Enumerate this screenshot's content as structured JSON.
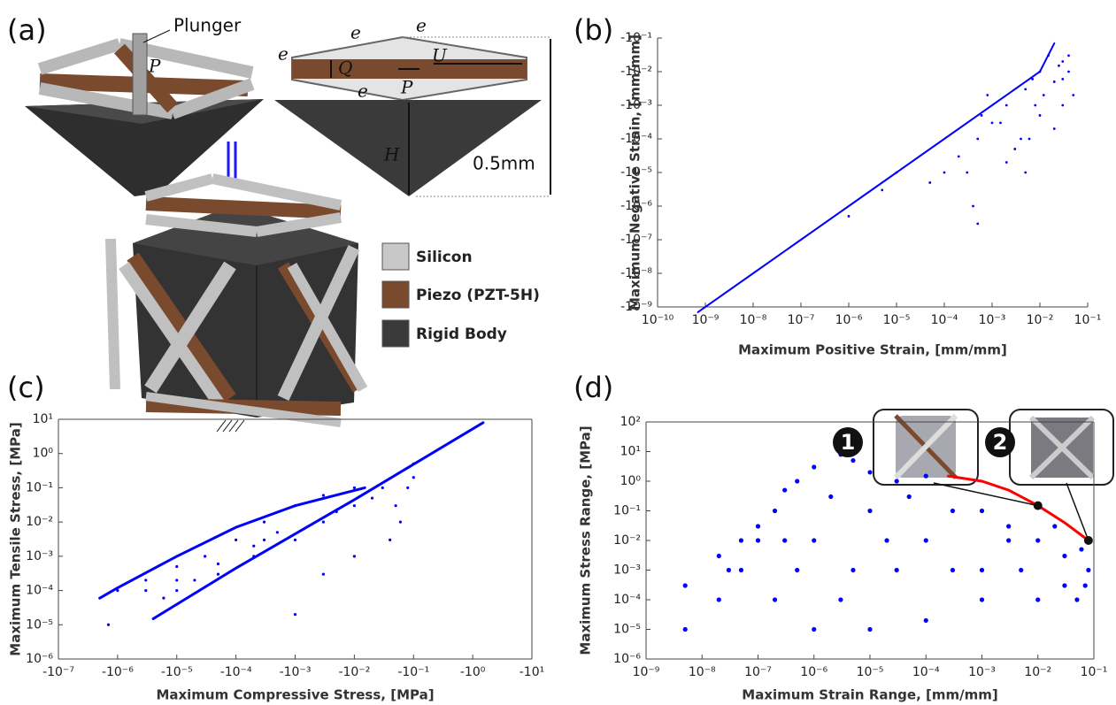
{
  "panels": [
    "(a)",
    "(b)",
    "(c)",
    "(d)"
  ],
  "diagram": {
    "labels": [
      "Plunger",
      "P",
      "e",
      "e",
      "e",
      "Q",
      "U",
      "e",
      "P",
      "H",
      "0.5mm"
    ]
  },
  "legend": {
    "items": [
      "Silicon",
      "Piezo (PZT-5H)",
      "Rigid Body"
    ]
  },
  "chart_data": [
    {
      "type": "scatter",
      "x_label": "Maximum Positive Strain, [mm/mm]",
      "y_label": "Maximum Negative Strain, [mm/mm]",
      "log_x": true,
      "log_y": true,
      "xlim": [
        1e-10,
        0.1
      ],
      "ylim": [
        -1e-09,
        -0.1
      ],
      "xticks": [
        {
          "value": 1e-10,
          "label": "10⁻¹⁰"
        },
        {
          "value": 1e-09,
          "label": "10⁻⁹"
        },
        {
          "value": 1e-08,
          "label": "10⁻⁸"
        },
        {
          "value": 1e-07,
          "label": "10⁻⁷"
        },
        {
          "value": 1e-06,
          "label": "10⁻⁶"
        },
        {
          "value": 1e-05,
          "label": "10⁻⁵"
        },
        {
          "value": 0.0001,
          "label": "10⁻⁴"
        },
        {
          "value": 0.001,
          "label": "10⁻³"
        },
        {
          "value": 0.01,
          "label": "10⁻²"
        },
        {
          "value": 0.1,
          "label": "10⁻¹"
        }
      ],
      "yticks": [
        {
          "value": -1e-09,
          "label": "-10⁻⁹"
        },
        {
          "value": -1e-08,
          "label": "-10⁻⁸"
        },
        {
          "value": -1e-07,
          "label": "-10⁻⁷"
        },
        {
          "value": -1e-06,
          "label": "-10⁻⁶"
        },
        {
          "value": -1e-05,
          "label": "-10⁻⁵"
        },
        {
          "value": -0.0001,
          "label": "-10⁻⁴"
        },
        {
          "value": -0.001,
          "label": "-10⁻³"
        },
        {
          "value": -0.01,
          "label": "-10⁻²"
        },
        {
          "value": -0.1,
          "label": "-10⁻¹"
        }
      ],
      "series": [
        {
          "type": "line",
          "color": "#0000ff",
          "x": [
            7e-10,
            1e-08,
            1e-07,
            1e-06,
            1e-05,
            0.0001,
            0.001,
            0.01,
            0.02
          ],
          "values": [
            -7e-10,
            -1e-08,
            -1e-07,
            -1e-06,
            -1e-05,
            -0.0001,
            -0.001,
            -0.01,
            -0.07
          ]
        },
        {
          "type": "scatter",
          "color": "#0000ff",
          "x": [
            0.0005,
            0.001,
            0.002,
            0.005,
            0.01,
            0.02,
            0.03,
            0.04,
            0.05,
            0.003,
            0.0001,
            5e-05,
            0.0005,
            0.0003,
            1e-05,
            0.002,
            0.005,
            0.01,
            0.02,
            0.03,
            0.006,
            0.0008,
            0.015,
            0.007,
            0.0004,
            0.0002,
            5e-06,
            1e-06,
            0.04,
            0.03,
            0.012,
            0.008,
            0.025,
            0.0006,
            0.0015,
            0.004
          ],
          "values": [
            -0.0001,
            -0.0003,
            -0.001,
            -0.003,
            -0.01,
            -0.005,
            -0.02,
            -0.01,
            -0.002,
            -5e-05,
            -1e-05,
            -5e-06,
            -3e-07,
            -1e-05,
            -1e-05,
            -2e-05,
            -1e-05,
            -0.0005,
            -0.0002,
            -0.001,
            -0.0001,
            -0.002,
            -0.03,
            -0.006,
            -1e-06,
            -3e-05,
            -3e-06,
            -5e-07,
            -0.03,
            -0.006,
            -0.002,
            -0.001,
            -0.015,
            -0.0005,
            -0.0003,
            -0.0001
          ]
        }
      ]
    },
    {
      "type": "scatter",
      "x_label": "Maximum Compressive Stress, [MPa]",
      "y_label": "Maximum Tensile Stress, [MPa]",
      "log_x": true,
      "log_y": true,
      "xlim": [
        -1e-07,
        -10.0
      ],
      "ylim": [
        1e-06,
        10.0
      ],
      "xticks": [
        {
          "value": -1e-07,
          "label": "-10⁻⁷"
        },
        {
          "value": -1e-06,
          "label": "-10⁻⁶"
        },
        {
          "value": -1e-05,
          "label": "-10⁻⁵"
        },
        {
          "value": -0.0001,
          "label": "-10⁻⁴"
        },
        {
          "value": -0.001,
          "label": "-10⁻³"
        },
        {
          "value": -0.01,
          "label": "-10⁻²"
        },
        {
          "value": -0.1,
          "label": "-10⁻¹"
        },
        {
          "value": -1,
          "label": "-10⁰"
        },
        {
          "value": -10,
          "label": "-10¹"
        }
      ],
      "yticks": [
        {
          "value": 1e-06,
          "label": "10⁻⁶"
        },
        {
          "value": 1e-05,
          "label": "10⁻⁵"
        },
        {
          "value": 0.0001,
          "label": "10⁻⁴"
        },
        {
          "value": 0.001,
          "label": "10⁻³"
        },
        {
          "value": 0.01,
          "label": "10⁻²"
        },
        {
          "value": 0.1,
          "label": "10⁻¹"
        },
        {
          "value": 1,
          "label": "10⁰"
        },
        {
          "value": 10,
          "label": "10¹"
        }
      ],
      "series": [
        {
          "type": "line",
          "color": "#0000ff",
          "x": [
            -4e-06,
            -0.0001,
            -0.01,
            -1.5
          ],
          "values": [
            1.5e-05,
            0.00045,
            0.045,
            8
          ]
        },
        {
          "type": "line",
          "color": "#0000ff",
          "x": [
            -5e-07,
            -1e-06,
            -1e-05,
            -0.0001,
            -0.001,
            -0.015
          ],
          "values": [
            6e-05,
            0.00012,
            0.001,
            0.007,
            0.03,
            0.1
          ]
        },
        {
          "type": "scatter",
          "color": "#0000ff",
          "x": [
            -1e-06,
            -3e-06,
            -1e-05,
            -3e-05,
            -0.0001,
            -0.0003,
            -0.001,
            -0.003,
            -0.01,
            -1e-05,
            -5e-05,
            -0.0002,
            -0.001,
            -0.003,
            -0.01,
            -0.03,
            -0.05,
            -0.08,
            -0.1,
            -0.04,
            -0.01,
            -0.003,
            -0.001,
            -7e-07,
            -6e-06,
            -2e-05,
            -5e-05,
            -0.0002,
            -0.0005,
            -0.005,
            -0.02,
            -0.06,
            -0.1,
            -3e-06,
            -1e-05,
            -0.0003
          ],
          "values": [
            0.0001,
            0.0002,
            0.0005,
            0.001,
            0.003,
            0.01,
            0.03,
            0.06,
            0.1,
            0.0001,
            0.0003,
            0.001,
            0.003,
            0.01,
            0.03,
            0.1,
            0.03,
            0.1,
            0.5,
            0.003,
            0.001,
            0.0003,
            2e-05,
            1e-05,
            6e-05,
            0.0002,
            0.0006,
            0.002,
            0.005,
            0.02,
            0.05,
            0.01,
            0.2,
            0.0001,
            0.0002,
            0.003
          ]
        }
      ]
    },
    {
      "type": "scatter",
      "x_label": "Maximum Strain Range, [mm/mm]",
      "y_label": "Maximum Stress Range, [MPa]",
      "log_x": true,
      "log_y": true,
      "xlim": [
        1e-09,
        0.1
      ],
      "ylim": [
        1e-06,
        100.0
      ],
      "xticks": [
        {
          "value": 1e-09,
          "label": "10⁻⁹"
        },
        {
          "value": 1e-08,
          "label": "10⁻⁸"
        },
        {
          "value": 1e-07,
          "label": "10⁻⁷"
        },
        {
          "value": 1e-06,
          "label": "10⁻⁶"
        },
        {
          "value": 1e-05,
          "label": "10⁻⁵"
        },
        {
          "value": 0.0001,
          "label": "10⁻⁴"
        },
        {
          "value": 0.001,
          "label": "10⁻³"
        },
        {
          "value": 0.01,
          "label": "10⁻²"
        },
        {
          "value": 0.1,
          "label": "10⁻¹"
        }
      ],
      "yticks": [
        {
          "value": 1e-06,
          "label": "10⁻⁶"
        },
        {
          "value": 1e-05,
          "label": "10⁻⁵"
        },
        {
          "value": 0.0001,
          "label": "10⁻⁴"
        },
        {
          "value": 0.001,
          "label": "10⁻³"
        },
        {
          "value": 0.01,
          "label": "10⁻²"
        },
        {
          "value": 0.1,
          "label": "10⁻¹"
        },
        {
          "value": 1,
          "label": "10⁰"
        },
        {
          "value": 10,
          "label": "10¹"
        },
        {
          "value": 100,
          "label": "10²"
        }
      ],
      "series": [
        {
          "type": "scatter",
          "color": "#0000ff",
          "x": [
            5e-09,
            5e-09,
            2e-08,
            5e-08,
            1e-07,
            2e-07,
            3e-07,
            5e-07,
            1e-06,
            3e-06,
            5e-06,
            1e-05,
            3e-05,
            0.0001,
            1e-06,
            1e-05,
            0.0001,
            0.001,
            0.01,
            0.05,
            0.08,
            2e-07,
            3e-08,
            5e-07,
            1e-06,
            1e-05,
            0.0001,
            0.001,
            0.01,
            0.001,
            0.03,
            2e-08,
            5e-08,
            1e-07,
            3e-07,
            2e-06,
            5e-06,
            2e-05,
            5e-05,
            0.0003,
            0.003,
            0.005,
            0.02,
            0.06,
            3e-06,
            3e-05,
            0.0003,
            0.003,
            0.03,
            0.07
          ],
          "values": [
            1e-05,
            0.0003,
            0.003,
            0.01,
            0.03,
            0.1,
            0.5,
            1,
            3,
            8,
            5,
            2,
            1,
            1.5,
            1e-05,
            1e-05,
            2e-05,
            0.0001,
            0.0001,
            0.0001,
            0.001,
            0.0001,
            0.001,
            0.001,
            0.01,
            0.1,
            0.01,
            0.1,
            0.01,
            0.001,
            0.003,
            0.0001,
            0.001,
            0.01,
            0.01,
            0.3,
            0.001,
            0.01,
            0.3,
            0.1,
            0.03,
            0.001,
            0.03,
            0.005,
            0.0001,
            0.001,
            0.001,
            0.01,
            0.0003,
            0.0003
          ]
        },
        {
          "type": "line",
          "color": "#ff0000",
          "x": [
            0.00025,
            0.001,
            0.003,
            0.01,
            0.03,
            0.08
          ],
          "values": [
            1.5,
            1,
            0.5,
            0.15,
            0.04,
            0.01
          ]
        }
      ],
      "annotations": [
        {
          "text": "1",
          "x": 0.01,
          "y": 0.15
        },
        {
          "text": "2",
          "x": 0.08,
          "y": 0.01
        }
      ]
    }
  ]
}
